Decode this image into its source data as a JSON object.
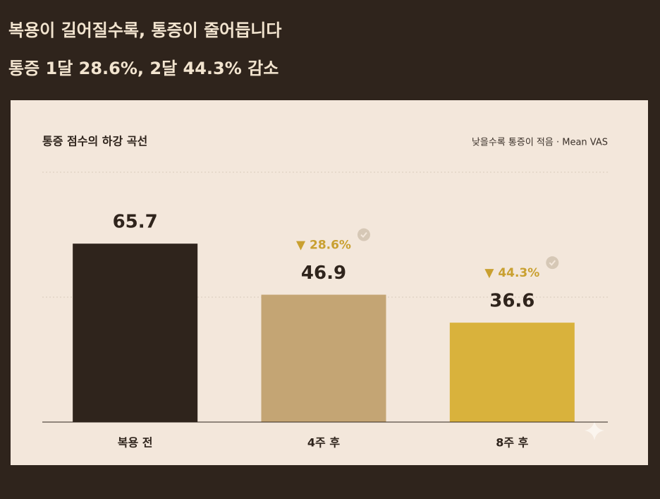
{
  "header": {
    "title": "복용이 길어질수록, 통증이 줄어듭니다",
    "subtitle": "통증 1달 28.6%, 2달 44.3% 감소"
  },
  "chart_data": {
    "type": "bar",
    "title": "통증 점수의 하강 곡선",
    "note": "낮을수록 통증이 적음 · Mean VAS",
    "categories": [
      "복용 전",
      "4주 후",
      "8주 후"
    ],
    "values": [
      65.7,
      46.9,
      36.6
    ],
    "colors": [
      "#2f241c",
      "#c4a574",
      "#d9b23c"
    ],
    "annotations": [
      null,
      "▼ 28.6%",
      "▼ 44.3%"
    ],
    "ylim": [
      0,
      92
    ]
  }
}
